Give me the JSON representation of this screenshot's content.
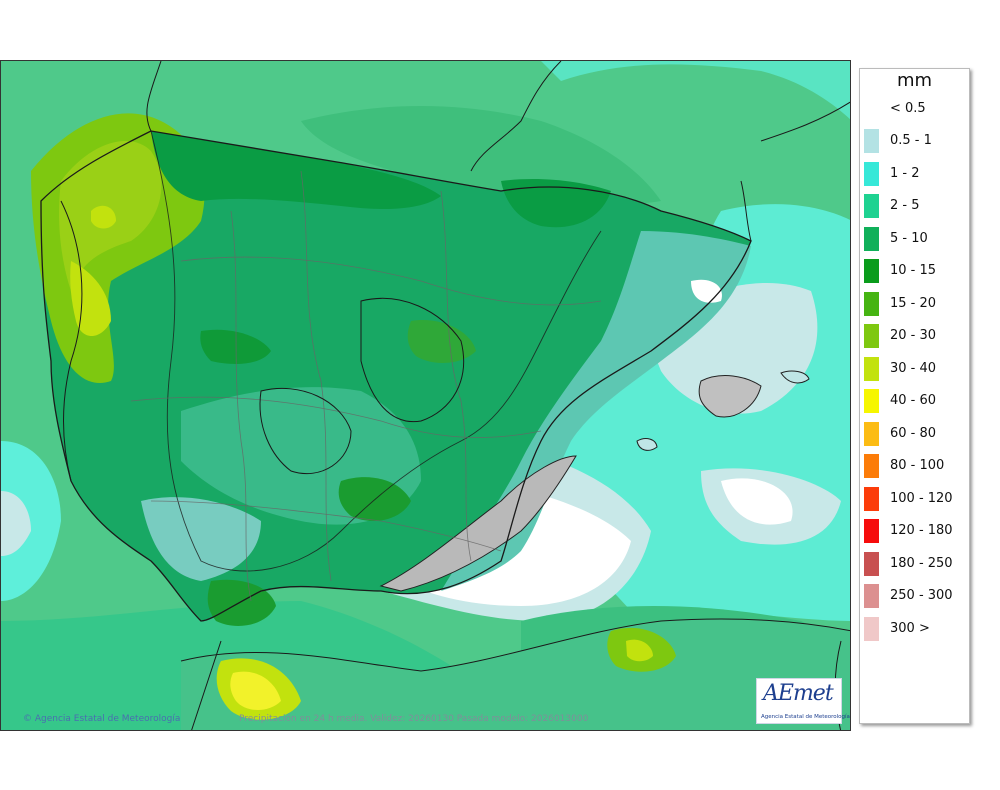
{
  "legend": {
    "unit": "mm",
    "first_label": "< 0.5",
    "items": [
      {
        "label": "0.5 - 1",
        "color": "#b3e2e4"
      },
      {
        "label": "1 - 2",
        "color": "#36e8d8"
      },
      {
        "label": "2 - 5",
        "color": "#1ed291"
      },
      {
        "label": "5 - 10",
        "color": "#10b05a"
      },
      {
        "label": "10 - 15",
        "color": "#0a9c1c"
      },
      {
        "label": "15 - 20",
        "color": "#46b412"
      },
      {
        "label": "20 - 30",
        "color": "#7ec810"
      },
      {
        "label": "30 - 40",
        "color": "#c2e20e"
      },
      {
        "label": "40 - 60",
        "color": "#f6f600"
      },
      {
        "label": "60 - 80",
        "color": "#fcbc14"
      },
      {
        "label": "80 - 100",
        "color": "#fc7c08"
      },
      {
        "label": "100 - 120",
        "color": "#fc3c0a"
      },
      {
        "label": "120 - 180",
        "color": "#f60c0c"
      },
      {
        "label": "180 - 250",
        "color": "#c85050"
      },
      {
        "label": "250 - 300",
        "color": "#dc9090"
      },
      {
        "label": "300 >",
        "color": "#f0c8c8"
      }
    ]
  },
  "map": {
    "credit": "Agencia Estatal de Meteorología",
    "validity": "Precipitación en 24 h media. Validez: 20260130 Pasada modelo: 2026013000",
    "logo_text": "AEmet",
    "logo_subtext": "Agencia Estatal de Meteorología"
  }
}
